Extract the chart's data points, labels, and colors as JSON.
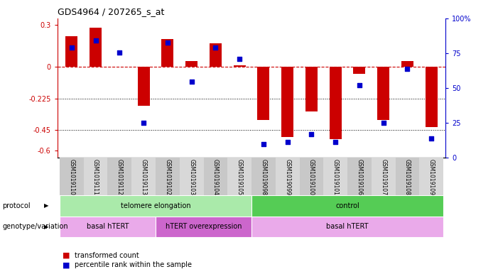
{
  "title": "GDS4964 / 207265_s_at",
  "samples": [
    "GSM1019110",
    "GSM1019111",
    "GSM1019112",
    "GSM1019113",
    "GSM1019102",
    "GSM1019103",
    "GSM1019104",
    "GSM1019105",
    "GSM1019098",
    "GSM1019099",
    "GSM1019100",
    "GSM1019101",
    "GSM1019106",
    "GSM1019107",
    "GSM1019108",
    "GSM1019109"
  ],
  "transformed_count": [
    0.22,
    0.28,
    0.0,
    -0.28,
    0.2,
    0.04,
    0.17,
    0.01,
    -0.38,
    -0.5,
    -0.32,
    -0.52,
    -0.05,
    -0.38,
    0.04,
    -0.43
  ],
  "percentile_rank": [
    82,
    88,
    78,
    22,
    86,
    55,
    82,
    73,
    5,
    7,
    13,
    7,
    52,
    22,
    65,
    10
  ],
  "bar_color": "#cc0000",
  "dot_color": "#0000cc",
  "ylim_left": [
    -0.65,
    0.35
  ],
  "ylim_right": [
    0,
    100
  ],
  "yticks_left": [
    0.3,
    0.0,
    -0.225,
    -0.45,
    -0.6
  ],
  "yticks_left_labels": [
    "0.3",
    "0",
    "-0.225",
    "-0.45",
    "-0.6"
  ],
  "yticks_right": [
    100,
    75,
    50,
    25,
    0
  ],
  "yticks_right_labels": [
    "100%",
    "75",
    "50",
    "25",
    "0"
  ],
  "dotted_lines": [
    -0.225,
    -0.45
  ],
  "protocol_groups": [
    {
      "label": "telomere elongation",
      "start": 0,
      "end": 7,
      "color": "#aaeaaa"
    },
    {
      "label": "control",
      "start": 8,
      "end": 15,
      "color": "#55cc55"
    }
  ],
  "genotype_groups": [
    {
      "label": "basal hTERT",
      "start": 0,
      "end": 3,
      "color": "#eaaaea"
    },
    {
      "label": "hTERT overexpression",
      "start": 4,
      "end": 7,
      "color": "#cc66cc"
    },
    {
      "label": "basal hTERT",
      "start": 8,
      "end": 15,
      "color": "#eaaaea"
    }
  ],
  "legend_items": [
    {
      "label": "transformed count",
      "color": "#cc0000"
    },
    {
      "label": "percentile rank within the sample",
      "color": "#0000cc"
    }
  ],
  "bg_color": "#ffffff",
  "protocol_label": "protocol",
  "genotype_label": "genotype/variation"
}
